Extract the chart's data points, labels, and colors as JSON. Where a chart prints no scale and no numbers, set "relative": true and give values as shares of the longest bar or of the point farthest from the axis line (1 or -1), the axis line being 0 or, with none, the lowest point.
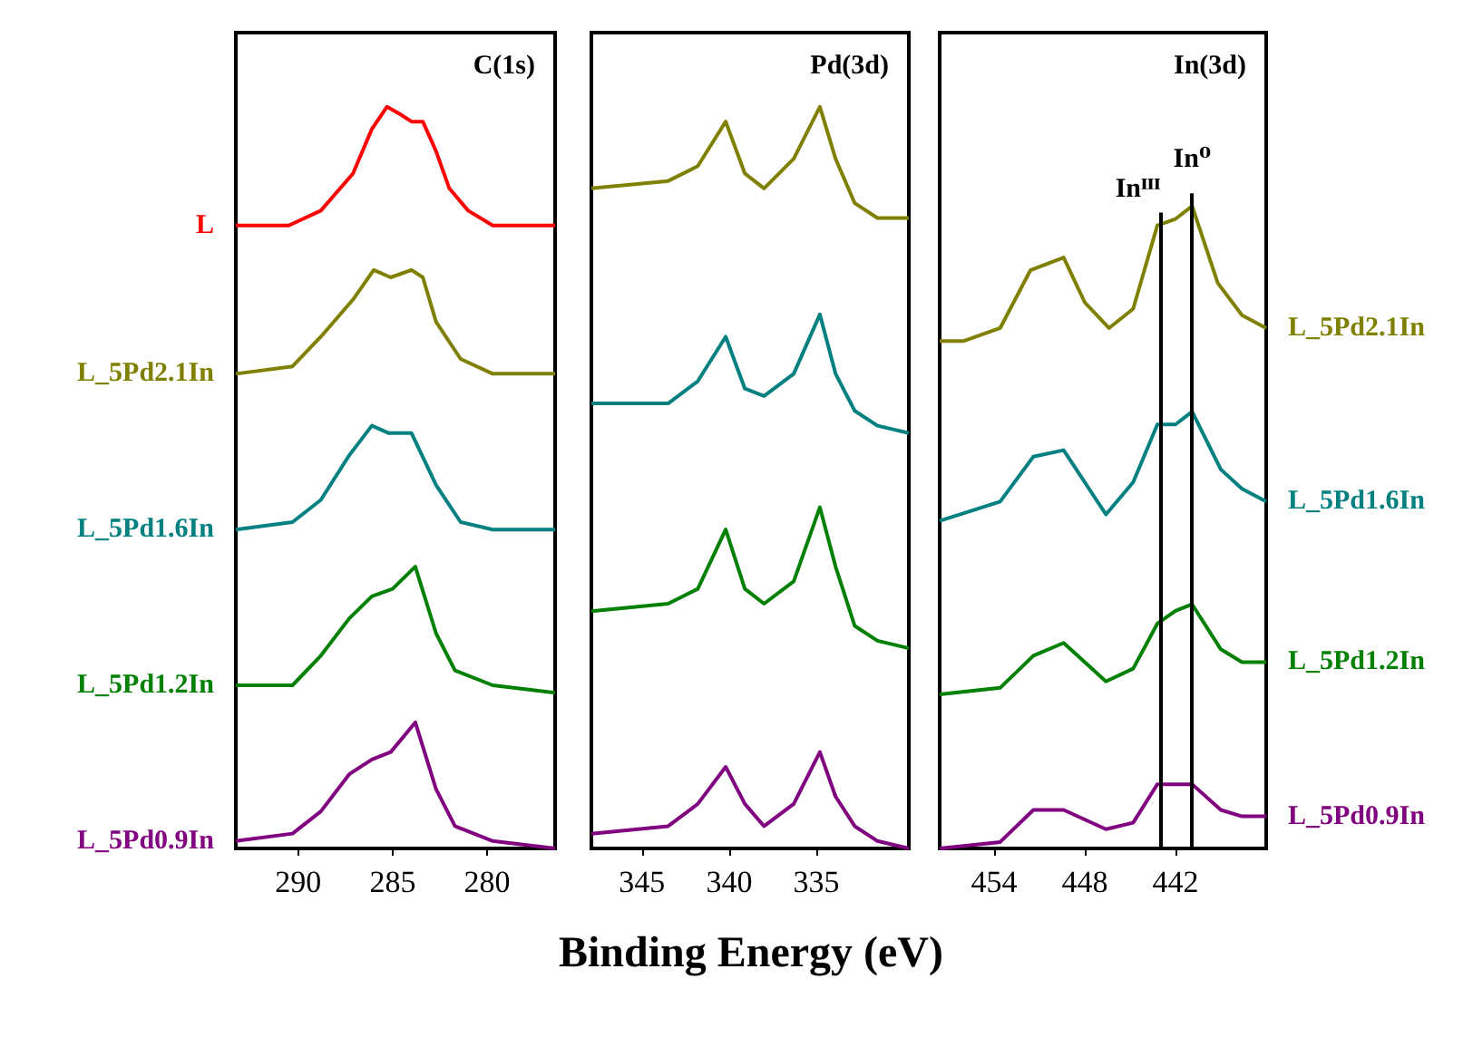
{
  "chart_data": [
    {
      "type": "line",
      "title": "C(1s)",
      "relative": true,
      "xlim": [
        293.3,
        276.4
      ],
      "xticks": [
        290,
        285,
        280
      ],
      "series": [
        {
          "name": "L",
          "color": "#ff0000",
          "x": [
            293.3,
            290.5,
            288.8,
            287.1,
            286.1,
            285.3,
            284.6,
            284.0,
            283.4,
            282.7,
            282.0,
            281.0,
            279.7,
            276.4
          ],
          "values": [
            0.84,
            0.84,
            0.86,
            0.91,
            0.97,
            1.0,
            0.99,
            0.98,
            0.98,
            0.94,
            0.89,
            0.86,
            0.84,
            0.84
          ]
        },
        {
          "name": "L_5Pd2.1In",
          "color": "#808000",
          "x": [
            293.3,
            290.3,
            288.8,
            287.1,
            286.0,
            285.1,
            284.0,
            283.4,
            282.7,
            281.4,
            279.7,
            276.4
          ],
          "values": [
            0.64,
            0.65,
            0.69,
            0.74,
            0.78,
            0.77,
            0.78,
            0.77,
            0.71,
            0.66,
            0.64,
            0.64
          ]
        },
        {
          "name": "L_5Pd1.6In",
          "color": "#008080",
          "x": [
            293.3,
            290.3,
            288.8,
            287.3,
            286.1,
            285.2,
            284.0,
            282.7,
            281.4,
            279.7,
            276.4
          ],
          "values": [
            0.43,
            0.44,
            0.47,
            0.53,
            0.57,
            0.56,
            0.56,
            0.49,
            0.44,
            0.43,
            0.43
          ]
        },
        {
          "name": "L_5Pd1.2In",
          "color": "#008000",
          "x": [
            293.3,
            290.3,
            288.8,
            287.3,
            286.1,
            285.0,
            283.8,
            282.7,
            281.7,
            279.7,
            276.4
          ],
          "values": [
            0.22,
            0.22,
            0.26,
            0.31,
            0.34,
            0.35,
            0.38,
            0.29,
            0.24,
            0.22,
            0.21
          ]
        },
        {
          "name": "L_5Pd0.9In",
          "color": "#800080",
          "x": [
            293.3,
            290.3,
            288.8,
            287.3,
            286.1,
            285.1,
            283.8,
            282.7,
            281.7,
            279.7,
            276.4
          ],
          "values": [
            0.01,
            0.02,
            0.05,
            0.1,
            0.12,
            0.13,
            0.17,
            0.08,
            0.03,
            0.01,
            0.0
          ]
        }
      ]
    },
    {
      "type": "line",
      "title": "Pd(3d)",
      "relative": true,
      "xlabel": "Binding Energy (eV)",
      "xlim": [
        347.9,
        329.7
      ],
      "xticks": [
        345,
        340,
        335
      ],
      "x": [
        347.9,
        343.5,
        341.8,
        340.2,
        339.1,
        338.0,
        336.3,
        334.8,
        333.9,
        332.8,
        331.5,
        329.7
      ],
      "series": [
        {
          "color": "#808000",
          "values": [
            0.89,
            0.9,
            0.92,
            0.98,
            0.91,
            0.89,
            0.93,
            1.0,
            0.93,
            0.87,
            0.85,
            0.85
          ]
        },
        {
          "color": "#008080",
          "values": [
            0.6,
            0.6,
            0.63,
            0.69,
            0.62,
            0.61,
            0.64,
            0.72,
            0.64,
            0.59,
            0.57,
            0.56
          ]
        },
        {
          "color": "#008000",
          "values": [
            0.32,
            0.33,
            0.35,
            0.43,
            0.35,
            0.33,
            0.36,
            0.46,
            0.38,
            0.3,
            0.28,
            0.27
          ]
        },
        {
          "color": "#800080",
          "values": [
            0.02,
            0.03,
            0.06,
            0.11,
            0.06,
            0.03,
            0.06,
            0.13,
            0.07,
            0.03,
            0.01,
            0.0
          ]
        }
      ]
    },
    {
      "type": "line",
      "title": "In(3d)",
      "relative": true,
      "xlim": [
        457.6,
        436.0
      ],
      "xticks": [
        454,
        448,
        442
      ],
      "ref_lines": [
        {
          "axis": "x",
          "value": 443.0,
          "label": "Inᴵᴵᴵ"
        },
        {
          "axis": "x",
          "value": 440.9,
          "label": "In⁰"
        }
      ],
      "series": [
        {
          "name": "L_5Pd2.1In",
          "color": "#808000",
          "x": [
            457.6,
            456.0,
            453.6,
            451.6,
            449.4,
            448.0,
            446.4,
            444.8,
            443.2,
            442.0,
            440.9,
            439.2,
            437.6,
            436.0
          ],
          "values": [
            0.79,
            0.79,
            0.81,
            0.9,
            0.92,
            0.85,
            0.81,
            0.84,
            0.97,
            0.98,
            1.0,
            0.88,
            0.83,
            0.81
          ]
        },
        {
          "name": "L_5Pd1.6In",
          "color": "#008080",
          "x": [
            457.6,
            453.6,
            451.4,
            449.4,
            446.6,
            444.8,
            443.2,
            442.0,
            440.9,
            439.0,
            437.6,
            436.0
          ],
          "values": [
            0.51,
            0.54,
            0.61,
            0.62,
            0.52,
            0.57,
            0.66,
            0.66,
            0.68,
            0.59,
            0.56,
            0.54
          ]
        },
        {
          "name": "L_5Pd1.2In",
          "color": "#008000",
          "x": [
            457.6,
            453.6,
            451.4,
            449.4,
            446.6,
            444.8,
            443.2,
            442.0,
            440.9,
            439.0,
            437.6,
            436.0
          ],
          "values": [
            0.24,
            0.25,
            0.3,
            0.32,
            0.26,
            0.28,
            0.35,
            0.37,
            0.38,
            0.31,
            0.29,
            0.29
          ]
        },
        {
          "name": "L_5Pd0.9In",
          "color": "#800080",
          "x": [
            457.6,
            453.6,
            451.4,
            449.4,
            446.6,
            444.8,
            443.2,
            442.0,
            440.9,
            439.0,
            437.6,
            436.0
          ],
          "values": [
            0.0,
            0.01,
            0.06,
            0.06,
            0.03,
            0.04,
            0.1,
            0.1,
            0.1,
            0.06,
            0.05,
            0.05
          ]
        }
      ]
    }
  ]
}
